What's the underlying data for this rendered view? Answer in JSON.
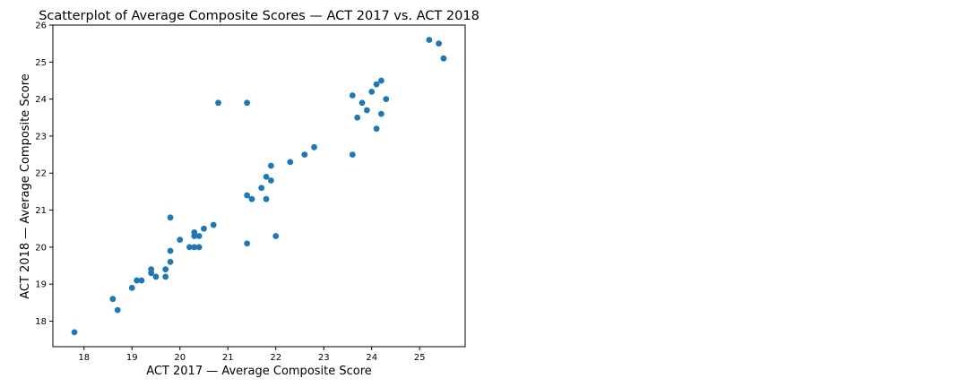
{
  "chart_data": {
    "type": "scatter",
    "title": "Scatterplot of Average Composite Scores — ACT 2017 vs. ACT 2018",
    "xlabel": "ACT 2017 — Average Composite Score",
    "ylabel": "ACT 2018 — Average Composite Score",
    "xlim": [
      17.35,
      25.95
    ],
    "ylim": [
      17.31,
      26.0
    ],
    "xticks": [
      18,
      19,
      20,
      21,
      22,
      23,
      24,
      25
    ],
    "yticks": [
      18,
      19,
      20,
      21,
      22,
      23,
      24,
      25,
      26
    ],
    "marker_color": "#1f77b4",
    "grid": false,
    "points": [
      [
        17.8,
        17.7
      ],
      [
        18.6,
        18.6
      ],
      [
        18.7,
        18.3
      ],
      [
        19.0,
        18.9
      ],
      [
        19.1,
        19.1
      ],
      [
        19.2,
        19.1
      ],
      [
        19.4,
        19.3
      ],
      [
        19.4,
        19.4
      ],
      [
        19.5,
        19.2
      ],
      [
        19.7,
        19.2
      ],
      [
        19.7,
        19.4
      ],
      [
        19.8,
        19.6
      ],
      [
        19.8,
        19.9
      ],
      [
        19.8,
        20.8
      ],
      [
        20.0,
        20.2
      ],
      [
        20.2,
        20.0
      ],
      [
        20.3,
        20.0
      ],
      [
        20.3,
        20.3
      ],
      [
        20.3,
        20.4
      ],
      [
        20.4,
        20.0
      ],
      [
        20.4,
        20.3
      ],
      [
        20.5,
        20.5
      ],
      [
        20.7,
        20.6
      ],
      [
        20.8,
        23.9
      ],
      [
        21.4,
        23.9
      ],
      [
        21.4,
        21.4
      ],
      [
        21.4,
        20.1
      ],
      [
        21.5,
        21.3
      ],
      [
        21.7,
        21.6
      ],
      [
        21.8,
        21.3
      ],
      [
        21.8,
        21.9
      ],
      [
        21.9,
        22.2
      ],
      [
        21.9,
        21.8
      ],
      [
        22.0,
        20.3
      ],
      [
        22.3,
        22.3
      ],
      [
        22.6,
        22.5
      ],
      [
        22.8,
        22.7
      ],
      [
        23.6,
        24.1
      ],
      [
        23.6,
        22.5
      ],
      [
        23.7,
        23.5
      ],
      [
        23.8,
        23.9
      ],
      [
        23.9,
        23.7
      ],
      [
        24.0,
        24.2
      ],
      [
        24.1,
        24.4
      ],
      [
        24.1,
        23.2
      ],
      [
        24.2,
        24.5
      ],
      [
        24.2,
        23.6
      ],
      [
        24.3,
        24.0
      ],
      [
        25.2,
        25.6
      ],
      [
        25.4,
        25.5
      ],
      [
        25.5,
        25.1
      ]
    ]
  }
}
